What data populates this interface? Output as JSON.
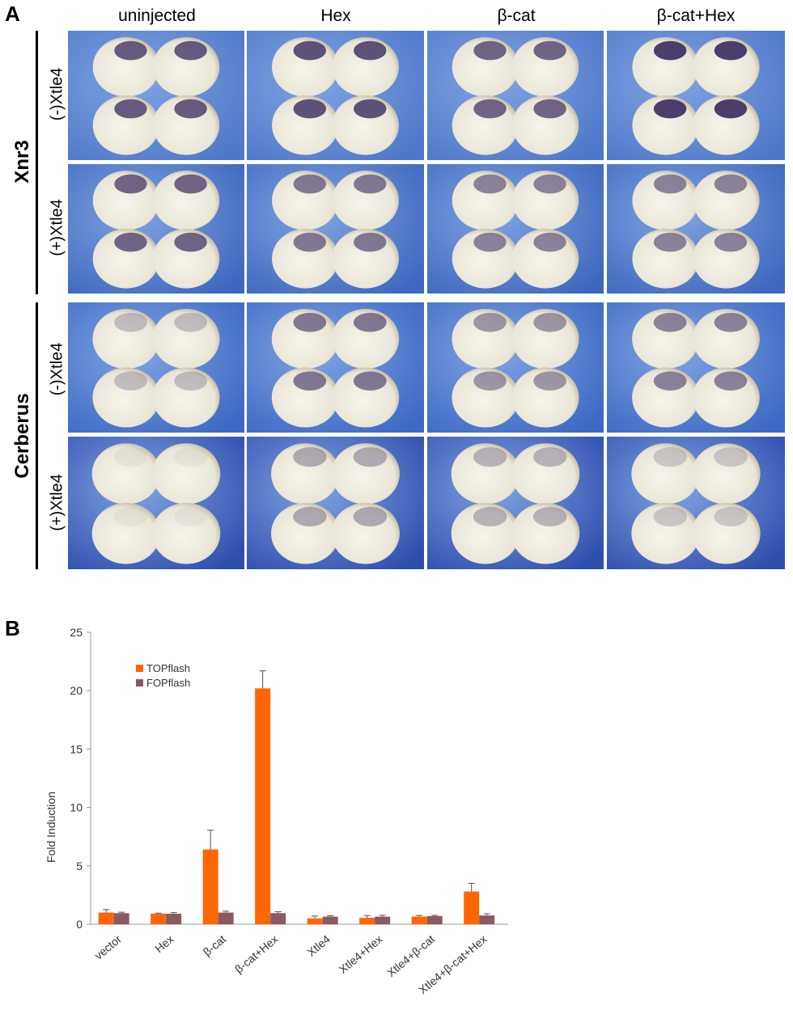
{
  "panel_a": {
    "letter": "A",
    "columns": [
      "uninjected",
      "Hex",
      "β-cat",
      "β-cat+Hex"
    ],
    "genes": [
      {
        "label": "Xnr3",
        "conditions": [
          "(-)Xtle4",
          "(+)Xtle4"
        ]
      },
      {
        "label": "Cerberus",
        "conditions": [
          "(-)Xtle4",
          "(+)Xtle4"
        ]
      }
    ],
    "colors": {
      "background_blue": "#3a63b8",
      "embryo": "#e9e6d8",
      "stain": "#3a2a5e"
    }
  },
  "panel_b": {
    "letter": "B",
    "chart_data": {
      "type": "bar",
      "title": "",
      "xlabel": "",
      "ylabel": "Fold Induction",
      "ylim": [
        0,
        25
      ],
      "yticks": [
        0,
        5,
        10,
        15,
        20,
        25
      ],
      "categories": [
        "vector",
        "Hex",
        "β-cat",
        "β-cat+Hex",
        "Xtle4",
        "Xtle4+Hex",
        "Xtle4+β-cat",
        "Xtle4+β-cat+Hex"
      ],
      "series": [
        {
          "name": "TOPflash",
          "color": "#ff6600",
          "values": [
            1.0,
            0.9,
            6.4,
            20.2,
            0.5,
            0.55,
            0.65,
            2.8
          ],
          "errors": [
            0.25,
            0.05,
            1.65,
            1.5,
            0.2,
            0.2,
            0.1,
            0.7
          ]
        },
        {
          "name": "FOPflash",
          "color": "#8b5a60",
          "values": [
            0.95,
            0.9,
            1.0,
            0.95,
            0.65,
            0.65,
            0.7,
            0.75
          ],
          "errors": [
            0.08,
            0.1,
            0.12,
            0.12,
            0.08,
            0.12,
            0.06,
            0.15
          ]
        }
      ],
      "legend_position": "top-left",
      "grid": false
    }
  }
}
